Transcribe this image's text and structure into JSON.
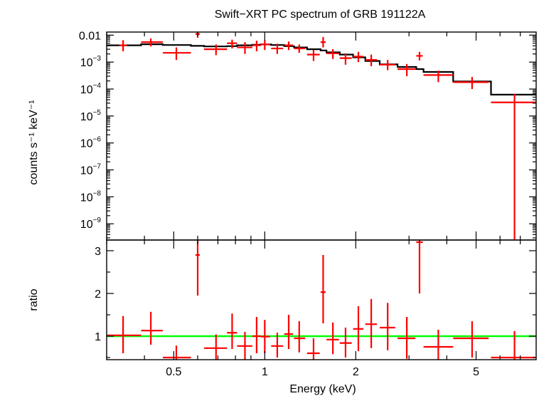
{
  "chart_data": [
    {
      "type": "scatter",
      "title": "Swift−XRT PC spectrum of GRB 191122A",
      "xlabel": "Energy (keV)",
      "ylabel": "counts s⁻¹ keV⁻¹",
      "xscale": "log",
      "yscale": "log",
      "xlim": [
        0.3,
        7.9
      ],
      "ylim": [
        2.5e-10,
        0.013
      ],
      "ytick_values": [
        1e-09,
        1e-08,
        1e-07,
        1e-06,
        1e-05,
        0.0001,
        0.001,
        0.01
      ],
      "ytick_labels": [
        {
          "base": "10",
          "exp": "−9"
        },
        {
          "base": "10",
          "exp": "−8"
        },
        {
          "base": "10",
          "exp": "−7"
        },
        {
          "base": "10",
          "exp": "−6"
        },
        {
          "base": "10",
          "exp": "−5"
        },
        {
          "base": "10",
          "exp": "−4"
        },
        {
          "base": "10",
          "exp": "−3"
        },
        {
          "base": "0.01",
          "exp": ""
        }
      ],
      "xtick_values": [
        0.5,
        1,
        2,
        5
      ],
      "xtick_labels": [
        "0.5",
        "1",
        "2",
        "5"
      ],
      "data_color": "#ff0000",
      "model_color": "#000000",
      "series": [
        {
          "kind": "data",
          "points": [
            {
              "x": 0.34,
              "xlo": 0.33,
              "xhi": 0.35,
              "y": 0.0042,
              "ylo": 0.0025,
              "yhi": 0.0065
            },
            {
              "x": 0.42,
              "xlo": 0.39,
              "xhi": 0.46,
              "y": 0.0055,
              "ylo": 0.0038,
              "yhi": 0.0075
            },
            {
              "x": 0.51,
              "xlo": 0.46,
              "xhi": 0.57,
              "y": 0.0022,
              "ylo": 0.0012,
              "yhi": 0.0035
            },
            {
              "x": 0.6,
              "xlo": 0.59,
              "xhi": 0.61,
              "y": 0.011,
              "ylo": 0.008,
              "yhi": 0.013
            },
            {
              "x": 0.69,
              "xlo": 0.63,
              "xhi": 0.75,
              "y": 0.003,
              "ylo": 0.0018,
              "yhi": 0.0045
            },
            {
              "x": 0.78,
              "xlo": 0.75,
              "xhi": 0.81,
              "y": 0.005,
              "ylo": 0.0032,
              "yhi": 0.0068
            },
            {
              "x": 0.86,
              "xlo": 0.81,
              "xhi": 0.91,
              "y": 0.0035,
              "ylo": 0.002,
              "yhi": 0.0055
            },
            {
              "x": 0.94,
              "xlo": 0.91,
              "xhi": 0.97,
              "y": 0.0042,
              "ylo": 0.0025,
              "yhi": 0.0062
            },
            {
              "x": 1.0,
              "xlo": 0.97,
              "xhi": 1.04,
              "y": 0.0045,
              "ylo": 0.0028,
              "yhi": 0.0065
            },
            {
              "x": 1.1,
              "xlo": 1.05,
              "xhi": 1.15,
              "y": 0.0032,
              "ylo": 0.002,
              "yhi": 0.0048
            },
            {
              "x": 1.2,
              "xlo": 1.16,
              "xhi": 1.24,
              "y": 0.0042,
              "ylo": 0.0028,
              "yhi": 0.0058
            },
            {
              "x": 1.3,
              "xlo": 1.25,
              "xhi": 1.36,
              "y": 0.0032,
              "ylo": 0.0022,
              "yhi": 0.0045
            },
            {
              "x": 1.45,
              "xlo": 1.38,
              "xhi": 1.52,
              "y": 0.0019,
              "ylo": 0.0011,
              "yhi": 0.0028
            },
            {
              "x": 1.56,
              "xlo": 1.53,
              "xhi": 1.59,
              "y": 0.0055,
              "ylo": 0.0035,
              "yhi": 0.0085
            },
            {
              "x": 1.68,
              "xlo": 1.6,
              "xhi": 1.76,
              "y": 0.0021,
              "ylo": 0.0013,
              "yhi": 0.003
            },
            {
              "x": 1.85,
              "xlo": 1.77,
              "xhi": 1.94,
              "y": 0.0014,
              "ylo": 0.0008,
              "yhi": 0.0021
            },
            {
              "x": 2.04,
              "xlo": 1.96,
              "xhi": 2.12,
              "y": 0.0016,
              "ylo": 0.001,
              "yhi": 0.0024
            },
            {
              "x": 2.25,
              "xlo": 2.15,
              "xhi": 2.35,
              "y": 0.0012,
              "ylo": 0.0007,
              "yhi": 0.0019
            },
            {
              "x": 2.55,
              "xlo": 2.4,
              "xhi": 2.7,
              "y": 0.0008,
              "ylo": 0.0005,
              "yhi": 0.0012
            },
            {
              "x": 2.95,
              "xlo": 2.75,
              "xhi": 3.15,
              "y": 0.00055,
              "ylo": 0.0003,
              "yhi": 0.00085
            },
            {
              "x": 3.25,
              "xlo": 3.17,
              "xhi": 3.33,
              "y": 0.0017,
              "ylo": 0.00115,
              "yhi": 0.0024
            },
            {
              "x": 3.75,
              "xlo": 3.35,
              "xhi": 4.2,
              "y": 0.00033,
              "ylo": 0.00018,
              "yhi": 0.00048
            },
            {
              "x": 4.85,
              "xlo": 4.2,
              "xhi": 5.5,
              "y": 0.00018,
              "ylo": 0.0001,
              "yhi": 0.00028
            },
            {
              "x": 6.7,
              "xlo": 5.6,
              "xhi": 7.9,
              "y": 3.2e-05,
              "ylo": 2.5e-10,
              "yhi": 6.5e-05
            }
          ]
        },
        {
          "kind": "model",
          "steps": [
            {
              "x0": 0.3,
              "x1": 0.39,
              "y": 0.0042
            },
            {
              "x0": 0.39,
              "x1": 0.46,
              "y": 0.0046
            },
            {
              "x0": 0.46,
              "x1": 0.57,
              "y": 0.0043
            },
            {
              "x0": 0.57,
              "x1": 0.63,
              "y": 0.004
            },
            {
              "x0": 0.63,
              "x1": 0.75,
              "y": 0.0038
            },
            {
              "x0": 0.75,
              "x1": 0.81,
              "y": 0.0039
            },
            {
              "x0": 0.81,
              "x1": 0.91,
              "y": 0.0042
            },
            {
              "x0": 0.91,
              "x1": 0.97,
              "y": 0.0044
            },
            {
              "x0": 0.97,
              "x1": 1.05,
              "y": 0.0045
            },
            {
              "x0": 1.05,
              "x1": 1.16,
              "y": 0.0043
            },
            {
              "x0": 1.16,
              "x1": 1.25,
              "y": 0.0039
            },
            {
              "x0": 1.25,
              "x1": 1.38,
              "y": 0.0035
            },
            {
              "x0": 1.38,
              "x1": 1.53,
              "y": 0.003
            },
            {
              "x0": 1.53,
              "x1": 1.6,
              "y": 0.0027
            },
            {
              "x0": 1.6,
              "x1": 1.77,
              "y": 0.0023
            },
            {
              "x0": 1.77,
              "x1": 1.96,
              "y": 0.0019
            },
            {
              "x0": 1.96,
              "x1": 2.15,
              "y": 0.0015
            },
            {
              "x0": 2.15,
              "x1": 2.4,
              "y": 0.0011
            },
            {
              "x0": 2.4,
              "x1": 2.75,
              "y": 0.00082
            },
            {
              "x0": 2.75,
              "x1": 3.17,
              "y": 0.00066
            },
            {
              "x0": 3.17,
              "x1": 3.35,
              "y": 0.00055
            },
            {
              "x0": 3.35,
              "x1": 4.2,
              "y": 0.00043
            },
            {
              "x0": 4.2,
              "x1": 5.6,
              "y": 0.00019
            },
            {
              "x0": 5.6,
              "x1": 7.9,
              "y": 6.2e-05
            }
          ]
        }
      ]
    },
    {
      "type": "scatter",
      "xlabel": "Energy (keV)",
      "ylabel": "ratio",
      "xscale": "log",
      "yscale": "linear",
      "xlim": [
        0.3,
        7.9
      ],
      "ylim": [
        0.45,
        3.25
      ],
      "ytick_values": [
        1,
        2,
        3
      ],
      "ytick_labels": [
        "1",
        "2",
        "3"
      ],
      "reference_line": 1,
      "reference_color": "#00ff00",
      "data_color": "#ff0000",
      "points": [
        {
          "x": 0.34,
          "xlo": 0.3,
          "xhi": 0.39,
          "y": 1.02,
          "ylo": 0.6,
          "yhi": 1.47
        },
        {
          "x": 0.42,
          "xlo": 0.39,
          "xhi": 0.46,
          "y": 1.13,
          "ylo": 0.8,
          "yhi": 1.57
        },
        {
          "x": 0.51,
          "xlo": 0.46,
          "xhi": 0.57,
          "y": 0.5,
          "ylo": 0.42,
          "yhi": 0.78
        },
        {
          "x": 0.6,
          "xlo": 0.59,
          "xhi": 0.61,
          "y": 2.9,
          "ylo": 1.95,
          "yhi": 3.3
        },
        {
          "x": 0.69,
          "xlo": 0.63,
          "xhi": 0.75,
          "y": 0.72,
          "ylo": 0.42,
          "yhi": 1.04
        },
        {
          "x": 0.78,
          "xlo": 0.75,
          "xhi": 0.81,
          "y": 1.08,
          "ylo": 0.7,
          "yhi": 1.53
        },
        {
          "x": 0.86,
          "xlo": 0.81,
          "xhi": 0.91,
          "y": 0.77,
          "ylo": 0.45,
          "yhi": 1.1
        },
        {
          "x": 0.94,
          "xlo": 0.91,
          "xhi": 0.97,
          "y": 1.0,
          "ylo": 0.6,
          "yhi": 1.45
        },
        {
          "x": 1.0,
          "xlo": 0.97,
          "xhi": 1.04,
          "y": 0.99,
          "ylo": 0.6,
          "yhi": 1.38
        },
        {
          "x": 1.1,
          "xlo": 1.05,
          "xhi": 1.15,
          "y": 0.77,
          "ylo": 0.5,
          "yhi": 1.08
        },
        {
          "x": 1.2,
          "xlo": 1.16,
          "xhi": 1.24,
          "y": 1.05,
          "ylo": 0.7,
          "yhi": 1.5
        },
        {
          "x": 1.3,
          "xlo": 1.25,
          "xhi": 1.36,
          "y": 0.95,
          "ylo": 0.62,
          "yhi": 1.35
        },
        {
          "x": 1.45,
          "xlo": 1.38,
          "xhi": 1.52,
          "y": 0.6,
          "ylo": 0.45,
          "yhi": 0.95
        },
        {
          "x": 1.56,
          "xlo": 1.53,
          "xhi": 1.59,
          "y": 2.03,
          "ylo": 1.3,
          "yhi": 2.9
        },
        {
          "x": 1.68,
          "xlo": 1.6,
          "xhi": 1.76,
          "y": 0.92,
          "ylo": 0.58,
          "yhi": 1.32
        },
        {
          "x": 1.85,
          "xlo": 1.77,
          "xhi": 1.94,
          "y": 0.84,
          "ylo": 0.5,
          "yhi": 1.2
        },
        {
          "x": 2.04,
          "xlo": 1.96,
          "xhi": 2.12,
          "y": 1.17,
          "ylo": 0.65,
          "yhi": 1.7
        },
        {
          "x": 2.25,
          "xlo": 2.15,
          "xhi": 2.35,
          "y": 1.28,
          "ylo": 0.72,
          "yhi": 1.87
        },
        {
          "x": 2.55,
          "xlo": 2.4,
          "xhi": 2.7,
          "y": 1.2,
          "ylo": 0.67,
          "yhi": 1.78
        },
        {
          "x": 2.95,
          "xlo": 2.75,
          "xhi": 3.15,
          "y": 0.95,
          "ylo": 0.47,
          "yhi": 1.45
        },
        {
          "x": 3.25,
          "xlo": 3.17,
          "xhi": 3.33,
          "y": 3.2,
          "ylo": 2.0,
          "yhi": 3.25
        },
        {
          "x": 3.75,
          "xlo": 3.35,
          "xhi": 4.2,
          "y": 0.75,
          "ylo": 0.4,
          "yhi": 1.15
        },
        {
          "x": 4.85,
          "xlo": 4.2,
          "xhi": 5.5,
          "y": 0.95,
          "ylo": 0.5,
          "yhi": 1.35
        },
        {
          "x": 6.7,
          "xlo": 5.6,
          "xhi": 7.9,
          "y": 0.5,
          "ylo": 0.4,
          "yhi": 1.12
        }
      ]
    }
  ]
}
